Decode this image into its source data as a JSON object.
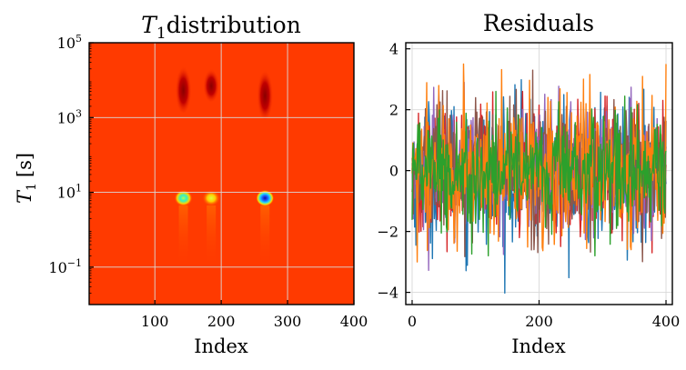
{
  "figure": {
    "background": "#ffffff"
  },
  "chart_data": [
    {
      "type": "heatmap",
      "title": "$T_1$distribution",
      "title_parts": {
        "symbol": "T",
        "subscript": "1",
        "rest": "distribution"
      },
      "xlabel": "Index",
      "ylabel": "$T_1$ [s]",
      "ylabel_parts": {
        "symbol": "T",
        "subscript": "1",
        "rest": "[s]"
      },
      "xlim": [
        1,
        400
      ],
      "ylim_log10": [
        -2,
        5
      ],
      "yscale": "log",
      "xticks": [
        100,
        200,
        300,
        400
      ],
      "xtick_labels": [
        "100",
        "200",
        "300",
        "400"
      ],
      "yticks_log10": [
        -1,
        1,
        3,
        5
      ],
      "ytick_labels": [
        {
          "base": "10",
          "exp": "−1"
        },
        {
          "base": "10",
          "exp": "1"
        },
        {
          "base": "10",
          "exp": "3"
        },
        {
          "base": "10",
          "exp": "5"
        }
      ],
      "grid": true,
      "background_color": "#ff3a00",
      "features": [
        {
          "kind": "hot-spot",
          "index": 143,
          "t1": 7,
          "color": "cyan-green"
        },
        {
          "kind": "hot-spot",
          "index": 185,
          "t1": 7,
          "color": "yellow-green"
        },
        {
          "kind": "hot-spot",
          "index": 266,
          "t1": 7,
          "color": "blue"
        },
        {
          "kind": "ridge",
          "index": 143,
          "t1_range": [
            1500,
            25000
          ],
          "color": "dark-red"
        },
        {
          "kind": "ridge",
          "index": 185,
          "t1_range": [
            3000,
            20000
          ],
          "color": "dark-red"
        },
        {
          "kind": "ridge",
          "index": 266,
          "t1_range": [
            1000,
            20000
          ],
          "color": "dark-red"
        }
      ]
    },
    {
      "type": "line",
      "title": "Residuals",
      "xlabel": "Index",
      "ylabel": "",
      "xlim": [
        -10,
        410
      ],
      "ylim": [
        -4.4,
        4.2
      ],
      "xticks": [
        0,
        200,
        400
      ],
      "yticks": [
        -4,
        -2,
        0,
        2,
        4
      ],
      "ytick_labels": [
        "−4",
        "−2",
        "0",
        "2",
        "4"
      ],
      "grid": true,
      "n_points": 401,
      "series": [
        {
          "color": "#1f77b4",
          "amplitude": 1.15,
          "min": -4.1,
          "max": 3.3
        },
        {
          "color": "#d62728",
          "amplitude": 1.0,
          "min": -2.7,
          "max": 2.6
        },
        {
          "color": "#9467bd",
          "amplitude": 1.05,
          "min": -3.9,
          "max": 2.9
        },
        {
          "color": "#8c564b",
          "amplitude": 1.1,
          "min": -3.2,
          "max": 3.3
        },
        {
          "color": "#ff7f0e",
          "amplitude": 1.2,
          "min": -3.0,
          "max": 3.5
        },
        {
          "color": "#2ca02c",
          "amplitude": 0.95,
          "min": -2.8,
          "max": 2.6
        }
      ]
    }
  ]
}
